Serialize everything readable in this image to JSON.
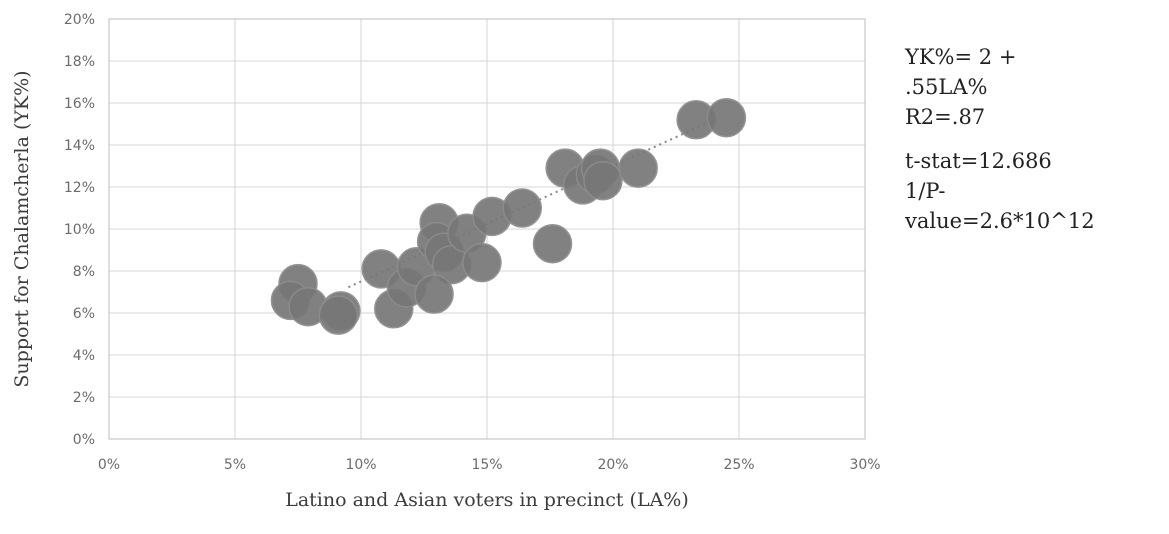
{
  "chart_data": {
    "type": "scatter",
    "title": "",
    "xlabel": "Latino and Asian voters in precinct (LA%)",
    "ylabel": "Support for Chalamcherla (YK%)",
    "xlim": [
      0,
      30
    ],
    "ylim": [
      0,
      20
    ],
    "x_ticks": [
      "0%",
      "5%",
      "10%",
      "15%",
      "20%",
      "25%",
      "30%"
    ],
    "y_ticks": [
      "0%",
      "2%",
      "4%",
      "6%",
      "8%",
      "10%",
      "12%",
      "14%",
      "16%",
      "18%",
      "20%"
    ],
    "grid": true,
    "trendline": {
      "style": "dotted",
      "intercept": 2,
      "slope": 0.55,
      "x_range": [
        9.5,
        24
      ]
    },
    "points": [
      {
        "x": 7.5,
        "y": 7.4
      },
      {
        "x": 7.2,
        "y": 6.6
      },
      {
        "x": 7.9,
        "y": 6.3
      },
      {
        "x": 9.2,
        "y": 6.1
      },
      {
        "x": 9.1,
        "y": 5.9
      },
      {
        "x": 10.8,
        "y": 8.1
      },
      {
        "x": 11.3,
        "y": 6.2
      },
      {
        "x": 11.8,
        "y": 7.2
      },
      {
        "x": 12.2,
        "y": 8.2
      },
      {
        "x": 13.1,
        "y": 10.3
      },
      {
        "x": 13.0,
        "y": 9.4
      },
      {
        "x": 13.3,
        "y": 8.9
      },
      {
        "x": 13.6,
        "y": 8.3
      },
      {
        "x": 12.9,
        "y": 6.9
      },
      {
        "x": 14.2,
        "y": 9.8
      },
      {
        "x": 14.8,
        "y": 8.4
      },
      {
        "x": 15.2,
        "y": 10.6
      },
      {
        "x": 16.4,
        "y": 11.0
      },
      {
        "x": 17.6,
        "y": 9.3
      },
      {
        "x": 18.1,
        "y": 12.9
      },
      {
        "x": 18.8,
        "y": 12.1
      },
      {
        "x": 19.3,
        "y": 12.6
      },
      {
        "x": 19.5,
        "y": 12.9
      },
      {
        "x": 19.6,
        "y": 12.3
      },
      {
        "x": 21.0,
        "y": 12.9
      },
      {
        "x": 23.3,
        "y": 15.2
      },
      {
        "x": 24.5,
        "y": 15.3
      }
    ]
  },
  "stats": {
    "line1": "YK%= 2 +",
    "line2": ".55LA%",
    "line3": "R2=.87",
    "line4": "t-stat=12.686",
    "line5": "1/P-",
    "line6": "value=2.6*10^12"
  }
}
